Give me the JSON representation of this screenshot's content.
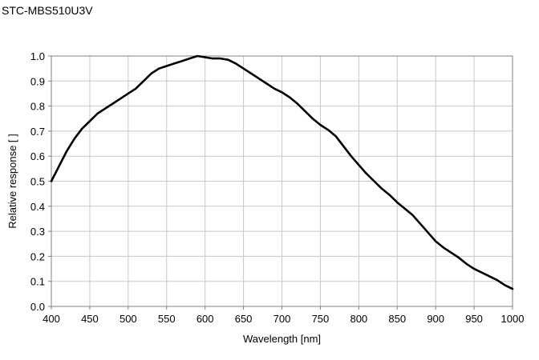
{
  "chart_data": {
    "type": "line",
    "title": "STC-MBS510U3V",
    "xlabel": "Wavelength [nm]",
    "ylabel": "Relative response [ ]",
    "xlim": [
      400,
      1000
    ],
    "ylim": [
      0.0,
      1.0
    ],
    "xticks": [
      400,
      450,
      500,
      550,
      600,
      650,
      700,
      750,
      800,
      850,
      900,
      950,
      1000
    ],
    "yticks": [
      0.0,
      0.1,
      0.2,
      0.3,
      0.4,
      0.5,
      0.6,
      0.7,
      0.8,
      0.9,
      1.0
    ],
    "ytick_labels": [
      "0.0",
      "0.1",
      "0.2",
      "0.3",
      "0.4",
      "0.5",
      "0.6",
      "0.7",
      "0.8",
      "0.9",
      "1.0"
    ],
    "grid": true,
    "legend": "none",
    "line_color": "#000000",
    "grid_color": "#c8c8c8",
    "series": [
      {
        "x": [
          400,
          410,
          420,
          430,
          440,
          450,
          460,
          470,
          480,
          490,
          500,
          510,
          520,
          530,
          540,
          550,
          560,
          570,
          580,
          590,
          600,
          610,
          620,
          630,
          640,
          650,
          660,
          670,
          680,
          690,
          700,
          710,
          720,
          730,
          740,
          750,
          760,
          770,
          780,
          790,
          800,
          810,
          820,
          830,
          840,
          850,
          860,
          870,
          880,
          890,
          900,
          910,
          920,
          930,
          940,
          950,
          960,
          970,
          980,
          990,
          1000
        ],
        "y": [
          0.5,
          0.56,
          0.62,
          0.67,
          0.71,
          0.74,
          0.77,
          0.79,
          0.81,
          0.83,
          0.85,
          0.87,
          0.9,
          0.93,
          0.95,
          0.96,
          0.97,
          0.98,
          0.99,
          1.0,
          0.995,
          0.99,
          0.99,
          0.985,
          0.97,
          0.95,
          0.93,
          0.91,
          0.89,
          0.87,
          0.855,
          0.835,
          0.81,
          0.78,
          0.75,
          0.725,
          0.705,
          0.68,
          0.64,
          0.6,
          0.565,
          0.53,
          0.5,
          0.47,
          0.445,
          0.415,
          0.39,
          0.365,
          0.33,
          0.295,
          0.26,
          0.235,
          0.215,
          0.195,
          0.17,
          0.15,
          0.135,
          0.12,
          0.105,
          0.085,
          0.07
        ]
      }
    ]
  }
}
